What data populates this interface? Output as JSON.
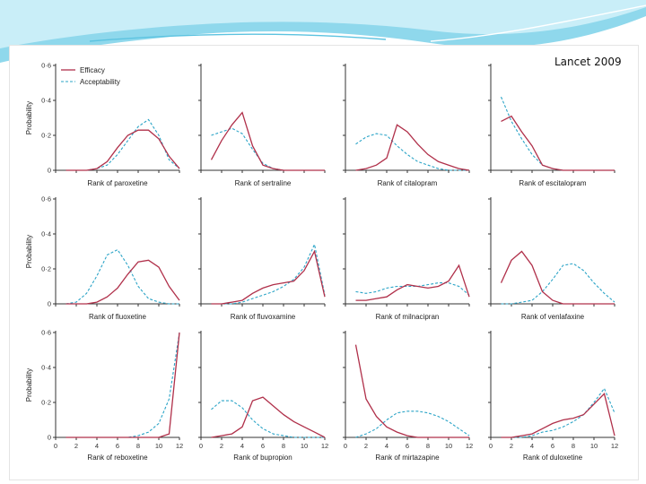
{
  "source": "Lancet 2009",
  "colors": {
    "efficacy": "#b0304a",
    "acceptability": "#2ba4c7",
    "header_accent": "#5cc3e0"
  },
  "legend": {
    "efficacy": "Efficacy",
    "acceptability": "Acceptability"
  },
  "y_axis_label": "Probability",
  "y_ticks": [
    "0",
    "0·2",
    "0·4",
    "0·6"
  ],
  "x_ticks": [
    "0",
    "2",
    "4",
    "6",
    "8",
    "10",
    "12"
  ],
  "chart_data": [
    {
      "type": "line",
      "xlabel": "Rank of paroxetine",
      "ylim": [
        0,
        0.6
      ],
      "xlim": [
        0,
        12
      ],
      "x": [
        1,
        2,
        3,
        4,
        5,
        6,
        7,
        8,
        9,
        10,
        11,
        12
      ],
      "series": [
        {
          "name": "Efficacy",
          "values": [
            0,
            0,
            0,
            0.01,
            0.05,
            0.13,
            0.2,
            0.23,
            0.23,
            0.18,
            0.08,
            0.01
          ]
        },
        {
          "name": "Acceptability",
          "values": [
            0,
            0,
            0,
            0.01,
            0.03,
            0.09,
            0.17,
            0.25,
            0.29,
            0.2,
            0.06,
            0.01
          ]
        }
      ]
    },
    {
      "type": "line",
      "xlabel": "Rank of sertraline",
      "ylim": [
        0,
        0.6
      ],
      "xlim": [
        0,
        12
      ],
      "x": [
        1,
        2,
        3,
        4,
        5,
        6,
        7,
        8,
        9,
        10,
        11,
        12
      ],
      "series": [
        {
          "name": "Efficacy",
          "values": [
            0.06,
            0.17,
            0.26,
            0.33,
            0.14,
            0.03,
            0.01,
            0,
            0,
            0,
            0,
            0
          ]
        },
        {
          "name": "Acceptability",
          "values": [
            0.2,
            0.22,
            0.24,
            0.21,
            0.12,
            0.04,
            0.01,
            0,
            0,
            0,
            0,
            0
          ]
        }
      ]
    },
    {
      "type": "line",
      "xlabel": "Rank of citalopram",
      "ylim": [
        0,
        0.6
      ],
      "xlim": [
        0,
        12
      ],
      "x": [
        1,
        2,
        3,
        4,
        5,
        6,
        7,
        8,
        9,
        10,
        11,
        12
      ],
      "series": [
        {
          "name": "Efficacy",
          "values": [
            0,
            0.01,
            0.03,
            0.07,
            0.26,
            0.22,
            0.15,
            0.09,
            0.05,
            0.03,
            0.01,
            0
          ]
        },
        {
          "name": "Acceptability",
          "values": [
            0.15,
            0.19,
            0.21,
            0.2,
            0.14,
            0.09,
            0.05,
            0.03,
            0.01,
            0,
            0,
            0
          ]
        }
      ]
    },
    {
      "type": "line",
      "xlabel": "Rank of escitalopram",
      "ylim": [
        0,
        0.6
      ],
      "xlim": [
        0,
        12
      ],
      "x": [
        1,
        2,
        3,
        4,
        5,
        6,
        7,
        8,
        9,
        10,
        11,
        12
      ],
      "series": [
        {
          "name": "Efficacy",
          "values": [
            0.28,
            0.31,
            0.22,
            0.14,
            0.03,
            0.01,
            0,
            0,
            0,
            0,
            0,
            0
          ]
        },
        {
          "name": "Acceptability",
          "values": [
            0.42,
            0.28,
            0.18,
            0.09,
            0.03,
            0.01,
            0,
            0,
            0,
            0,
            0,
            0
          ]
        }
      ]
    },
    {
      "type": "line",
      "xlabel": "Rank of fluoxetine",
      "ylim": [
        0,
        0.6
      ],
      "xlim": [
        0,
        12
      ],
      "x": [
        1,
        2,
        3,
        4,
        5,
        6,
        7,
        8,
        9,
        10,
        11,
        12
      ],
      "series": [
        {
          "name": "Efficacy",
          "values": [
            0,
            0,
            0,
            0.01,
            0.04,
            0.09,
            0.17,
            0.24,
            0.25,
            0.21,
            0.1,
            0.02
          ]
        },
        {
          "name": "Acceptability",
          "values": [
            0,
            0.01,
            0.06,
            0.16,
            0.28,
            0.31,
            0.22,
            0.1,
            0.03,
            0.01,
            0,
            0
          ]
        }
      ]
    },
    {
      "type": "line",
      "xlabel": "Rank of fluvoxamine",
      "ylim": [
        0,
        0.6
      ],
      "xlim": [
        0,
        12
      ],
      "x": [
        1,
        2,
        3,
        4,
        5,
        6,
        7,
        8,
        9,
        10,
        11,
        12
      ],
      "series": [
        {
          "name": "Efficacy",
          "values": [
            0,
            0,
            0.01,
            0.02,
            0.06,
            0.09,
            0.11,
            0.12,
            0.13,
            0.19,
            0.3,
            0.04
          ]
        },
        {
          "name": "Acceptability",
          "values": [
            0,
            0,
            0,
            0.01,
            0.03,
            0.05,
            0.07,
            0.1,
            0.14,
            0.21,
            0.34,
            0.05
          ]
        }
      ]
    },
    {
      "type": "line",
      "xlabel": "Rank of milnacipran",
      "ylim": [
        0,
        0.6
      ],
      "xlim": [
        0,
        12
      ],
      "x": [
        1,
        2,
        3,
        4,
        5,
        6,
        7,
        8,
        9,
        10,
        11,
        12
      ],
      "series": [
        {
          "name": "Efficacy",
          "values": [
            0.02,
            0.02,
            0.03,
            0.04,
            0.08,
            0.11,
            0.1,
            0.09,
            0.1,
            0.13,
            0.22,
            0.04
          ]
        },
        {
          "name": "Acceptability",
          "values": [
            0.07,
            0.06,
            0.07,
            0.09,
            0.1,
            0.1,
            0.1,
            0.11,
            0.12,
            0.12,
            0.1,
            0.05
          ]
        }
      ]
    },
    {
      "type": "line",
      "xlabel": "Rank of venlafaxine",
      "ylim": [
        0,
        0.6
      ],
      "xlim": [
        0,
        12
      ],
      "x": [
        1,
        2,
        3,
        4,
        5,
        6,
        7,
        8,
        9,
        10,
        11,
        12
      ],
      "series": [
        {
          "name": "Efficacy",
          "values": [
            0.12,
            0.25,
            0.3,
            0.22,
            0.07,
            0.02,
            0,
            0,
            0,
            0,
            0,
            0
          ]
        },
        {
          "name": "Acceptability",
          "values": [
            0,
            0,
            0.01,
            0.02,
            0.07,
            0.14,
            0.22,
            0.23,
            0.19,
            0.12,
            0.06,
            0.01
          ]
        }
      ]
    },
    {
      "type": "line",
      "xlabel": "Rank of reboxetine",
      "ylim": [
        0,
        0.6
      ],
      "xlim": [
        0,
        12
      ],
      "x": [
        1,
        2,
        3,
        4,
        5,
        6,
        7,
        8,
        9,
        10,
        11,
        12
      ],
      "series": [
        {
          "name": "Efficacy",
          "values": [
            0,
            0,
            0,
            0,
            0,
            0,
            0,
            0,
            0,
            0,
            0.02,
            0.6
          ]
        },
        {
          "name": "Acceptability",
          "values": [
            0,
            0,
            0,
            0,
            0,
            0,
            0,
            0.01,
            0.03,
            0.08,
            0.22,
            0.6
          ]
        }
      ]
    },
    {
      "type": "line",
      "xlabel": "Rank of bupropion",
      "ylim": [
        0,
        0.6
      ],
      "xlim": [
        0,
        12
      ],
      "x": [
        1,
        2,
        3,
        4,
        5,
        6,
        7,
        8,
        9,
        10,
        11,
        12
      ],
      "series": [
        {
          "name": "Efficacy",
          "values": [
            0,
            0.01,
            0.02,
            0.06,
            0.21,
            0.23,
            0.18,
            0.13,
            0.09,
            0.06,
            0.03,
            0
          ]
        },
        {
          "name": "Acceptability",
          "values": [
            0.16,
            0.21,
            0.21,
            0.17,
            0.1,
            0.05,
            0.02,
            0.01,
            0,
            0,
            0,
            0
          ]
        }
      ]
    },
    {
      "type": "line",
      "xlabel": "Rank of mirtazapine",
      "ylim": [
        0,
        0.6
      ],
      "xlim": [
        0,
        12
      ],
      "x": [
        1,
        2,
        3,
        4,
        5,
        6,
        7,
        8,
        9,
        10,
        11,
        12
      ],
      "series": [
        {
          "name": "Efficacy",
          "values": [
            0.53,
            0.22,
            0.12,
            0.06,
            0.03,
            0.01,
            0,
            0,
            0,
            0,
            0,
            0
          ]
        },
        {
          "name": "Acceptability",
          "values": [
            0,
            0.02,
            0.05,
            0.1,
            0.14,
            0.15,
            0.15,
            0.14,
            0.12,
            0.09,
            0.05,
            0.01
          ]
        }
      ]
    },
    {
      "type": "line",
      "xlabel": "Rank of duloxetine",
      "ylim": [
        0,
        0.6
      ],
      "xlim": [
        0,
        12
      ],
      "x": [
        1,
        2,
        3,
        4,
        5,
        6,
        7,
        8,
        9,
        10,
        11,
        12
      ],
      "series": [
        {
          "name": "Efficacy",
          "values": [
            0,
            0,
            0.01,
            0.02,
            0.05,
            0.08,
            0.1,
            0.11,
            0.13,
            0.19,
            0.25,
            0.01
          ]
        },
        {
          "name": "Acceptability",
          "values": [
            0,
            0,
            0,
            0.01,
            0.03,
            0.04,
            0.06,
            0.09,
            0.13,
            0.2,
            0.28,
            0.14
          ]
        }
      ]
    }
  ]
}
